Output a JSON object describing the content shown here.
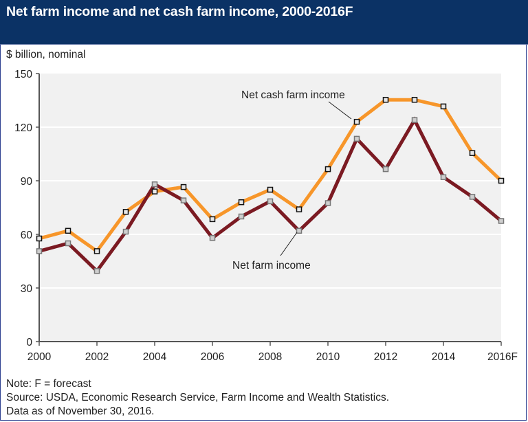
{
  "header": {
    "title": "Net farm income and net cash farm income, 2000-2016F"
  },
  "unit_label": "$ billion, nominal",
  "annotations": {
    "net_cash": "Net cash farm income",
    "net_farm": "Net farm income"
  },
  "notes": {
    "note": "Note: F = forecast",
    "source": "Source: USDA, Economic Research Service, Farm Income and Wealth Statistics.",
    "data_as_of": "Data as of November 30, 2016."
  },
  "colors": {
    "header_bg": "#0b3265",
    "plot_bg": "#f1f1f1",
    "net_cash": "#f7962a",
    "net_farm": "#7b1a22",
    "border": "#2b3f8f"
  },
  "chart_data": {
    "type": "line",
    "title": "Net farm income and net cash farm income, 2000-2016F",
    "subtitle": "$ billion, nominal",
    "xlabel": "",
    "ylabel": "$ billion, nominal",
    "ylim": [
      0,
      150
    ],
    "yticks": [
      0,
      30,
      60,
      90,
      120,
      150
    ],
    "xticks": [
      "2000",
      "2002",
      "2004",
      "2006",
      "2008",
      "2010",
      "2012",
      "2014",
      "2016F"
    ],
    "grid": "horizontal",
    "legend": "inline annotations",
    "x": [
      "2000",
      "2001",
      "2002",
      "2003",
      "2004",
      "2005",
      "2006",
      "2007",
      "2008",
      "2009",
      "2010",
      "2011",
      "2012",
      "2013",
      "2014",
      "2015",
      "2016F"
    ],
    "series": [
      {
        "name": "Net cash farm income",
        "color": "#f7962a",
        "values": [
          57.7,
          62.0,
          50.6,
          72.6,
          84.0,
          86.5,
          68.5,
          78.0,
          85.0,
          74.0,
          96.5,
          123.0,
          135.3,
          135.3,
          131.6,
          105.5,
          90.0
        ]
      },
      {
        "name": "Net farm income",
        "color": "#7b1a22",
        "values": [
          50.6,
          55.0,
          39.5,
          61.5,
          88.0,
          79.0,
          58.0,
          70.0,
          78.5,
          62.0,
          77.5,
          113.5,
          96.5,
          124.0,
          92.0,
          81.0,
          67.5
        ]
      }
    ],
    "annotations": [
      {
        "text": "Net cash farm income",
        "points_to": "2011"
      },
      {
        "text": "Net farm income",
        "points_to": "2009"
      }
    ],
    "notes": [
      "Note: F = forecast",
      "Source: USDA, Economic Research Service, Farm Income and Wealth Statistics.",
      "Data as of November 30, 2016."
    ]
  }
}
